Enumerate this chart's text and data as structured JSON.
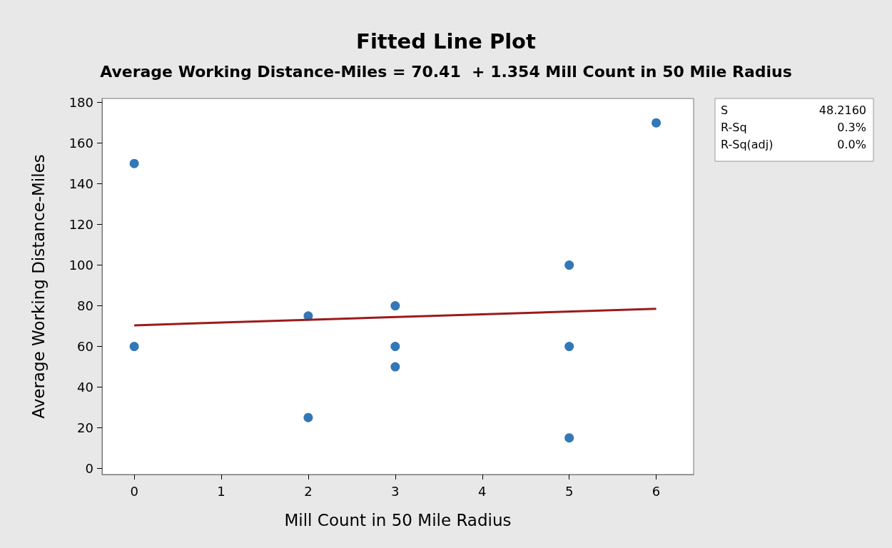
{
  "chart_data": {
    "type": "scatter",
    "title": "Fitted Line Plot",
    "subtitle": "Average Working Distance-Miles = 70.41  + 1.354 Mill Count in 50 Mile Radius",
    "xlabel": "Mill Count in 50 Mile Radius",
    "ylabel": "Average Working Distance-Miles",
    "series": [
      {
        "color": "#0055a5",
        "x": [
          0,
          0,
          2,
          2,
          3,
          3,
          3,
          5,
          5,
          5,
          6
        ],
        "values": [
          150,
          60,
          75,
          25,
          80,
          60,
          50,
          100,
          60,
          15,
          170
        ]
      },
      {
        "type": "line",
        "marker": "none",
        "color": "#9b1b1b",
        "x": [
          0,
          6
        ],
        "values": [
          70.4,
          78.5
        ]
      }
    ],
    "xlim": [
      -0.37,
      6.43
    ],
    "xticks": [
      0,
      1,
      2,
      3,
      4,
      5,
      6
    ],
    "ylim": [
      -3,
      182
    ],
    "yticks": [
      0,
      20,
      40,
      60,
      80,
      100,
      120,
      140,
      160,
      180
    ],
    "marker": "circle",
    "line_style": "solid",
    "grid": false,
    "annotations": [
      "S 48.2160",
      "R-Sq 0.3%",
      "R-Sq(adj) 0.0%"
    ]
  }
}
